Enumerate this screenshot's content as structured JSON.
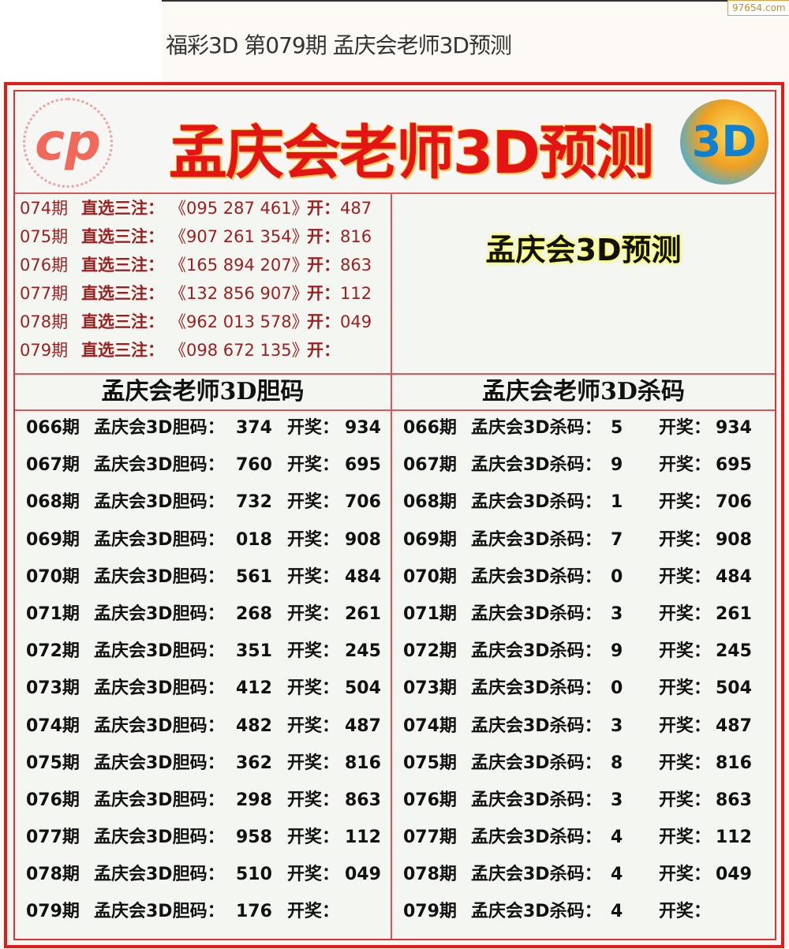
{
  "page_title": "福彩3D 第079期 孟庆会老师3D预测",
  "watermark": "97654.com",
  "banner": {
    "title": "孟庆会老师3D预测",
    "logo_left": "cp",
    "logo_right": "3D"
  },
  "subtitle": "孟庆会3D预测",
  "direct_picks": {
    "label": "直选三注：",
    "open_label": "开：",
    "rows": [
      {
        "period": "074期",
        "numbers": "《095 287 461》",
        "open": "487"
      },
      {
        "period": "075期",
        "numbers": "《907 261 354》",
        "open": "816"
      },
      {
        "period": "076期",
        "numbers": "《165 894 207》",
        "open": "863"
      },
      {
        "period": "077期",
        "numbers": "《132 856 907》",
        "open": "112"
      },
      {
        "period": "078期",
        "numbers": "《962 013 578》",
        "open": "049"
      },
      {
        "period": "079期",
        "numbers": "《098 672 135》",
        "open": ""
      }
    ]
  },
  "dan": {
    "header": "孟庆会老师3D胆码",
    "label": "孟庆会3D胆码：",
    "open_label": "开奖：",
    "rows": [
      {
        "period": "066期",
        "code": "374",
        "open": "934"
      },
      {
        "period": "067期",
        "code": "760",
        "open": "695"
      },
      {
        "period": "068期",
        "code": "732",
        "open": "706"
      },
      {
        "period": "069期",
        "code": "018",
        "open": "908"
      },
      {
        "period": "070期",
        "code": "561",
        "open": "484"
      },
      {
        "period": "071期",
        "code": "268",
        "open": "261"
      },
      {
        "period": "072期",
        "code": "351",
        "open": "245"
      },
      {
        "period": "073期",
        "code": "412",
        "open": "504"
      },
      {
        "period": "074期",
        "code": "482",
        "open": "487"
      },
      {
        "period": "075期",
        "code": "362",
        "open": "816"
      },
      {
        "period": "076期",
        "code": "298",
        "open": "863"
      },
      {
        "period": "077期",
        "code": "958",
        "open": "112"
      },
      {
        "period": "078期",
        "code": "510",
        "open": "049"
      },
      {
        "period": "079期",
        "code": "176",
        "open": ""
      }
    ]
  },
  "sha": {
    "header": "孟庆会老师3D杀码",
    "label": "孟庆会3D杀码：",
    "open_label": "开奖：",
    "rows": [
      {
        "period": "066期",
        "code": "5",
        "open": "934"
      },
      {
        "period": "067期",
        "code": "9",
        "open": "695"
      },
      {
        "period": "068期",
        "code": "1",
        "open": "706"
      },
      {
        "period": "069期",
        "code": "7",
        "open": "908"
      },
      {
        "period": "070期",
        "code": "0",
        "open": "484"
      },
      {
        "period": "071期",
        "code": "3",
        "open": "261"
      },
      {
        "period": "072期",
        "code": "9",
        "open": "245"
      },
      {
        "period": "073期",
        "code": "0",
        "open": "504"
      },
      {
        "period": "074期",
        "code": "3",
        "open": "487"
      },
      {
        "period": "075期",
        "code": "8",
        "open": "816"
      },
      {
        "period": "076期",
        "code": "3",
        "open": "863"
      },
      {
        "period": "077期",
        "code": "4",
        "open": "112"
      },
      {
        "period": "078期",
        "code": "4",
        "open": "049"
      },
      {
        "period": "079期",
        "code": "4",
        "open": ""
      }
    ]
  }
}
